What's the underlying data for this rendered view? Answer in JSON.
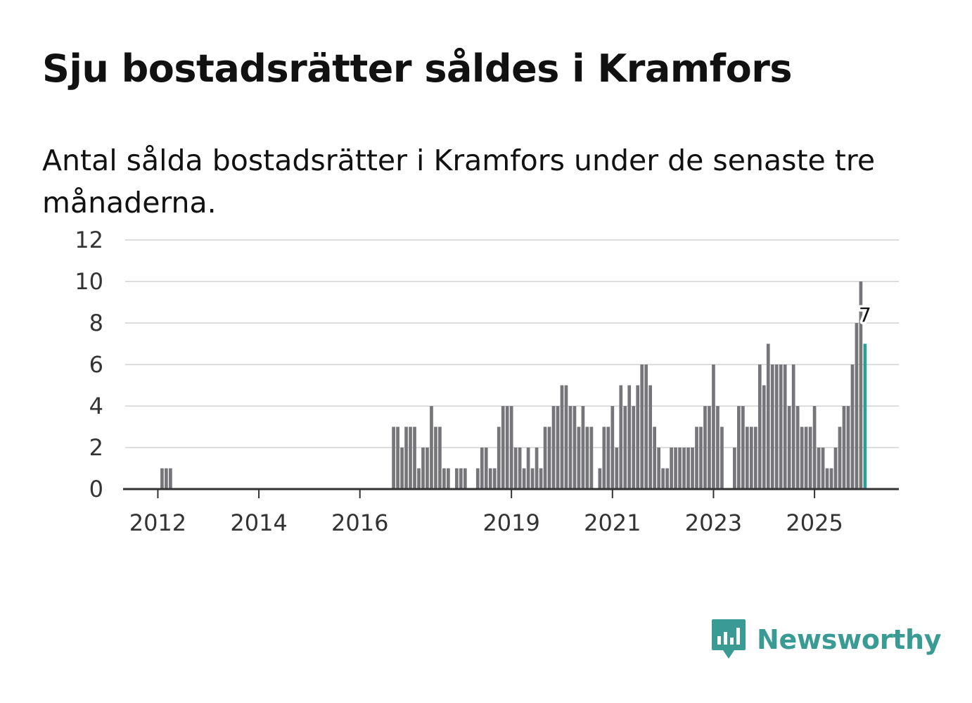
{
  "title": "Sju bostadsrätter såldes i Kramfors",
  "subtitle": "Antal sålda bostadsrätter i Kramfors under de senaste tre månaderna.",
  "brand": {
    "name": "Newsworthy",
    "color": "#3a9a94",
    "icon": "newsworthy-logo-icon"
  },
  "colors": {
    "bar": "#75757a",
    "highlight": "#2a9d96",
    "grid": "#dddddd",
    "axis": "#333333"
  },
  "chart_data": {
    "type": "bar",
    "title": "Sju bostadsrätter såldes i Kramfors",
    "xlabel": "",
    "ylabel": "",
    "ylim": [
      0,
      12
    ],
    "yticks": [
      0,
      2,
      4,
      6,
      8,
      10,
      12
    ],
    "grid": true,
    "start": "2011-05",
    "frequency": "monthly",
    "xticks": [
      {
        "label": "2012",
        "month_index": 8
      },
      {
        "label": "2014",
        "month_index": 32
      },
      {
        "label": "2016",
        "month_index": 56
      },
      {
        "label": "2019",
        "month_index": 92
      },
      {
        "label": "2021",
        "month_index": 116
      },
      {
        "label": "2023",
        "month_index": 140
      },
      {
        "label": "2025",
        "month_index": 164
      }
    ],
    "values": [
      0,
      0,
      0,
      0,
      0,
      0,
      0,
      0,
      0,
      1,
      1,
      1,
      0,
      0,
      0,
      0,
      0,
      0,
      0,
      0,
      0,
      0,
      0,
      0,
      0,
      0,
      0,
      0,
      0,
      0,
      0,
      0,
      0,
      0,
      0,
      0,
      0,
      0,
      0,
      0,
      0,
      0,
      0,
      0,
      0,
      0,
      0,
      0,
      0,
      0,
      0,
      0,
      0,
      0,
      0,
      0,
      0,
      0,
      0,
      0,
      0,
      0,
      0,
      0,
      3,
      3,
      2,
      3,
      3,
      3,
      1,
      2,
      2,
      4,
      3,
      3,
      1,
      1,
      0,
      1,
      1,
      1,
      0,
      0,
      1,
      2,
      2,
      1,
      1,
      3,
      4,
      4,
      4,
      2,
      2,
      1,
      2,
      1,
      2,
      1,
      3,
      3,
      4,
      4,
      5,
      5,
      4,
      4,
      3,
      4,
      3,
      3,
      0,
      1,
      3,
      3,
      4,
      2,
      5,
      4,
      5,
      4,
      5,
      6,
      6,
      5,
      3,
      2,
      1,
      1,
      2,
      2,
      2,
      2,
      2,
      2,
      3,
      3,
      4,
      4,
      6,
      4,
      3,
      0,
      0,
      2,
      4,
      4,
      3,
      3,
      3,
      6,
      5,
      7,
      6,
      6,
      6,
      6,
      4,
      6,
      4,
      3,
      3,
      3,
      4,
      2,
      2,
      1,
      1,
      2,
      3,
      4,
      4,
      6,
      8,
      10,
      7
    ],
    "highlight_index": 176,
    "annotation": {
      "label": "7",
      "value": 7
    }
  }
}
